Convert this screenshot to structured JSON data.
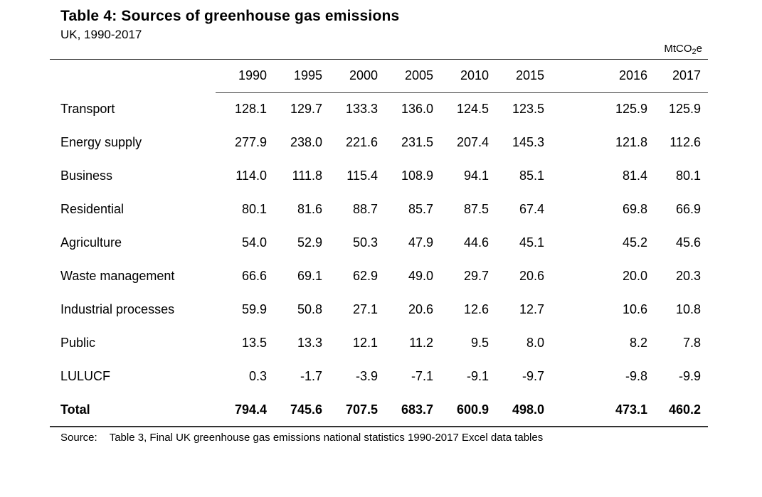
{
  "title": "Table 4: Sources of greenhouse gas emissions",
  "subtitle": "UK, 1990-2017",
  "unit": {
    "base": "MtCO",
    "sub": "2",
    "tail": "e"
  },
  "chart_data": {
    "type": "table",
    "title": "Table 4: Sources of greenhouse gas emissions",
    "subtitle": "UK, 1990-2017",
    "unit": "MtCO2e",
    "columns": [
      "1990",
      "1995",
      "2000",
      "2005",
      "2010",
      "2015",
      "2016",
      "2017"
    ],
    "rows": [
      {
        "label": "Transport",
        "values": [
          "128.1",
          "129.7",
          "133.3",
          "136.0",
          "124.5",
          "123.5",
          "125.9",
          "125.9"
        ]
      },
      {
        "label": "Energy supply",
        "values": [
          "277.9",
          "238.0",
          "221.6",
          "231.5",
          "207.4",
          "145.3",
          "121.8",
          "112.6"
        ]
      },
      {
        "label": "Business",
        "values": [
          "114.0",
          "111.8",
          "115.4",
          "108.9",
          "94.1",
          "85.1",
          "81.4",
          "80.1"
        ]
      },
      {
        "label": "Residential",
        "values": [
          "80.1",
          "81.6",
          "88.7",
          "85.7",
          "87.5",
          "67.4",
          "69.8",
          "66.9"
        ]
      },
      {
        "label": "Agriculture",
        "values": [
          "54.0",
          "52.9",
          "50.3",
          "47.9",
          "44.6",
          "45.1",
          "45.2",
          "45.6"
        ]
      },
      {
        "label": "Waste management",
        "values": [
          "66.6",
          "69.1",
          "62.9",
          "49.0",
          "29.7",
          "20.6",
          "20.0",
          "20.3"
        ]
      },
      {
        "label": "Industrial processes",
        "values": [
          "59.9",
          "50.8",
          "27.1",
          "20.6",
          "12.6",
          "12.7",
          "10.6",
          "10.8"
        ]
      },
      {
        "label": "Public",
        "values": [
          "13.5",
          "13.3",
          "12.1",
          "11.2",
          "9.5",
          "8.0",
          "8.2",
          "7.8"
        ]
      },
      {
        "label": "LULUCF",
        "values": [
          "0.3",
          "-1.7",
          "-3.9",
          "-7.1",
          "-9.1",
          "-9.7",
          "-9.8",
          "-9.9"
        ]
      }
    ],
    "total_row": {
      "label": "Total",
      "values": [
        "794.4",
        "745.6",
        "707.5",
        "683.7",
        "600.9",
        "498.0",
        "473.1",
        "460.2"
      ]
    }
  },
  "source": {
    "label": "Source:",
    "text": "Table 3, Final UK greenhouse gas emissions national statistics 1990-2017 Excel data tables"
  }
}
